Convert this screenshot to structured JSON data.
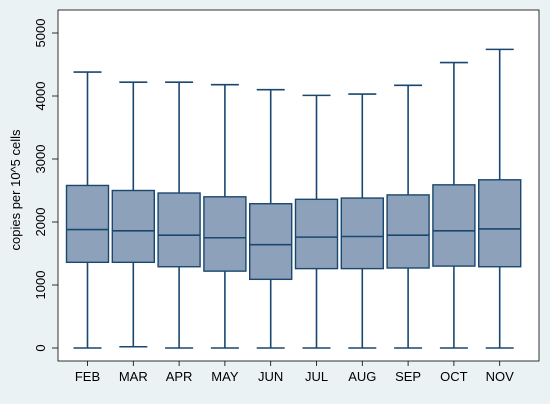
{
  "chart_data": {
    "type": "box",
    "title": "",
    "xlabel": "",
    "ylabel": "copies per 10^5 cells",
    "ylim": [
      0,
      5000
    ],
    "yticks": [
      0,
      1000,
      2000,
      3000,
      4000,
      5000
    ],
    "grid": false,
    "categories": [
      "FEB",
      "MAR",
      "APR",
      "MAY",
      "JUN",
      "JUL",
      "AUG",
      "SEP",
      "OCT",
      "NOV"
    ],
    "boxes": [
      {
        "category": "FEB",
        "min": 0,
        "q1": 1360,
        "median": 1880,
        "q3": 2580,
        "max": 4380
      },
      {
        "category": "MAR",
        "min": 20,
        "q1": 1360,
        "median": 1860,
        "q3": 2500,
        "max": 4220
      },
      {
        "category": "APR",
        "min": 0,
        "q1": 1290,
        "median": 1790,
        "q3": 2460,
        "max": 4220
      },
      {
        "category": "MAY",
        "min": 0,
        "q1": 1220,
        "median": 1750,
        "q3": 2400,
        "max": 4180
      },
      {
        "category": "JUN",
        "min": 0,
        "q1": 1090,
        "median": 1640,
        "q3": 2290,
        "max": 4100
      },
      {
        "category": "JUL",
        "min": 0,
        "q1": 1260,
        "median": 1760,
        "q3": 2360,
        "max": 4010
      },
      {
        "category": "AUG",
        "min": 0,
        "q1": 1260,
        "median": 1770,
        "q3": 2380,
        "max": 4030
      },
      {
        "category": "SEP",
        "min": 0,
        "q1": 1270,
        "median": 1790,
        "q3": 2430,
        "max": 4170
      },
      {
        "category": "OCT",
        "min": 0,
        "q1": 1300,
        "median": 1860,
        "q3": 2590,
        "max": 4530
      },
      {
        "category": "NOV",
        "min": 0,
        "q1": 1290,
        "median": 1890,
        "q3": 2670,
        "max": 4740
      }
    ],
    "box_fill": "#8da2ba",
    "box_stroke": "#1a476f",
    "whisker_color": "#1a476f",
    "plot_background": "#ffffff",
    "outer_background": "#eaf2f3"
  }
}
